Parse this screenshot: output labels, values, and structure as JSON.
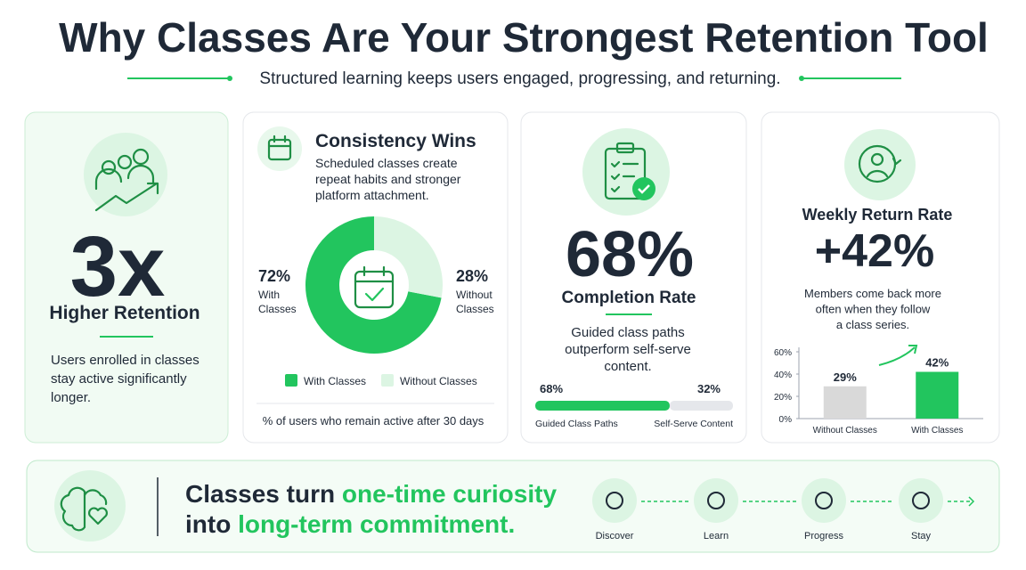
{
  "header": {
    "title": "Why Classes Are Your Strongest Retention Tool",
    "subtitle": "Structured learning keeps users engaged, progressing, and returning."
  },
  "retention": {
    "headline": "3x",
    "label": "Higher Retention",
    "text": [
      "Users enrolled in classes",
      "stay active significantly",
      "longer."
    ]
  },
  "consistency": {
    "title": "Consistency Wins",
    "text": [
      "Scheduled classes create",
      "repeat habits and stronger",
      "platform attachment."
    ],
    "chart": {
      "type": "pie",
      "categories": [
        "With Classes",
        "Without Classes"
      ],
      "values": [
        72,
        28
      ],
      "value_labels": [
        "72%",
        "28%"
      ],
      "colors": [
        "#22c55e",
        "#dcf5e3"
      ],
      "note": "% of users who remain active after 30 days"
    }
  },
  "completion": {
    "label": "Completion Rate",
    "text": [
      "Guided class paths",
      "outperform self-serve",
      "content."
    ],
    "chart": {
      "type": "progress",
      "categories": [
        "Guided Class Paths",
        "Self-Serve Content"
      ],
      "values": [
        68,
        32
      ],
      "value_labels": [
        "68%",
        "32%"
      ],
      "colors": [
        "#22c55e",
        "#e5e7eb"
      ]
    }
  },
  "weekly": {
    "title": "Weekly Return Rate",
    "headline": "+42%",
    "text": [
      "Members come back more",
      "often when they follow",
      "a class series."
    ],
    "chart": {
      "type": "bar",
      "categories": [
        "Without Classes",
        "With Classes"
      ],
      "values": [
        29,
        42
      ],
      "value_labels": [
        "29%",
        "42%"
      ],
      "colors": [
        "#d9d9d9",
        "#22c55e"
      ],
      "ylim": [
        0,
        60
      ],
      "yticks": [
        {
          "value": 0,
          "label": "0%"
        },
        {
          "value": 20,
          "label": "20%"
        },
        {
          "value": 40,
          "label": "40%"
        },
        {
          "value": 60,
          "label": "60%"
        }
      ]
    }
  },
  "footer": {
    "message": [
      "Classes turn ",
      "one-time curiosity",
      "into ",
      "long-term commitment."
    ],
    "steps": [
      "Discover",
      "Learn",
      "Progress",
      "Stay"
    ]
  }
}
